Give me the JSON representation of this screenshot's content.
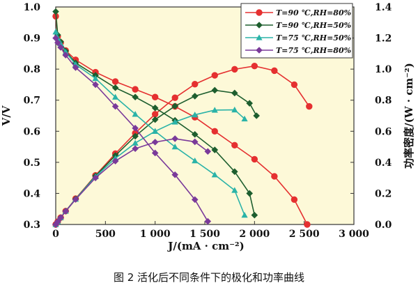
{
  "chart_data": {
    "type": "line",
    "caption": "图 2    活化后不同条件下的极化和功率曲线",
    "xlabel": "J/(mA · cm⁻²)",
    "ylabel_left": "V/V",
    "ylabel_right": "功率密度/(W · cm⁻²)",
    "xlim": [
      0,
      3000
    ],
    "ylim_left": [
      0.3,
      1.0
    ],
    "ylim_right": [
      0.0,
      1.4
    ],
    "x_ticks": [
      "0",
      "500",
      "1 000",
      "1 500",
      "2 000",
      "2 500",
      "3 000"
    ],
    "y_left_ticks": [
      "0.3",
      "0.4",
      "0.5",
      "0.6",
      "0.7",
      "0.8",
      "0.9",
      "1.0"
    ],
    "y_right_ticks": [
      "0.0",
      "0.2",
      "0.4",
      "0.6",
      "0.8",
      "1.0",
      "1.2",
      "1.4"
    ],
    "legend_position": "top-right",
    "series": [
      {
        "name": "T=90 ℃,RH=80%",
        "color": "#e53030",
        "marker": "circle",
        "voltage": [
          [
            0,
            0.97
          ],
          [
            20,
            0.905
          ],
          [
            50,
            0.885
          ],
          [
            100,
            0.86
          ],
          [
            200,
            0.83
          ],
          [
            400,
            0.79
          ],
          [
            600,
            0.76
          ],
          [
            800,
            0.735
          ],
          [
            1000,
            0.71
          ],
          [
            1200,
            0.68
          ],
          [
            1400,
            0.645
          ],
          [
            1600,
            0.6
          ],
          [
            1800,
            0.555
          ],
          [
            2000,
            0.51
          ],
          [
            2200,
            0.455
          ],
          [
            2400,
            0.38
          ],
          [
            2530,
            0.3
          ]
        ],
        "power": [
          [
            0,
            0.0
          ],
          [
            20,
            0.018
          ],
          [
            50,
            0.044
          ],
          [
            100,
            0.086
          ],
          [
            200,
            0.166
          ],
          [
            400,
            0.316
          ],
          [
            600,
            0.456
          ],
          [
            800,
            0.588
          ],
          [
            1000,
            0.71
          ],
          [
            1200,
            0.816
          ],
          [
            1400,
            0.903
          ],
          [
            1600,
            0.96
          ],
          [
            1800,
            0.999
          ],
          [
            2000,
            1.02
          ],
          [
            2200,
            0.99
          ],
          [
            2400,
            0.9
          ],
          [
            2550,
            0.76
          ]
        ]
      },
      {
        "name": "T=90 ℃,RH=50%",
        "color": "#1d5e2e",
        "marker": "diamond",
        "voltage": [
          [
            0,
            0.985
          ],
          [
            20,
            0.91
          ],
          [
            50,
            0.888
          ],
          [
            100,
            0.858
          ],
          [
            200,
            0.82
          ],
          [
            400,
            0.78
          ],
          [
            600,
            0.74
          ],
          [
            800,
            0.71
          ],
          [
            1000,
            0.675
          ],
          [
            1200,
            0.635
          ],
          [
            1400,
            0.59
          ],
          [
            1600,
            0.54
          ],
          [
            1800,
            0.47
          ],
          [
            1950,
            0.4
          ],
          [
            2000,
            0.33
          ]
        ],
        "power": [
          [
            0,
            0.0
          ],
          [
            20,
            0.018
          ],
          [
            50,
            0.044
          ],
          [
            100,
            0.086
          ],
          [
            200,
            0.164
          ],
          [
            400,
            0.312
          ],
          [
            600,
            0.444
          ],
          [
            800,
            0.568
          ],
          [
            1000,
            0.675
          ],
          [
            1200,
            0.762
          ],
          [
            1400,
            0.826
          ],
          [
            1600,
            0.864
          ],
          [
            1800,
            0.846
          ],
          [
            1950,
            0.78
          ],
          [
            2020,
            0.7
          ]
        ]
      },
      {
        "name": "T=75 ℃,RH=50%",
        "color": "#2ab3a8",
        "marker": "triangle",
        "voltage": [
          [
            0,
            0.92
          ],
          [
            20,
            0.9
          ],
          [
            50,
            0.882
          ],
          [
            100,
            0.855
          ],
          [
            200,
            0.815
          ],
          [
            400,
            0.77
          ],
          [
            600,
            0.71
          ],
          [
            800,
            0.655
          ],
          [
            1000,
            0.6
          ],
          [
            1200,
            0.55
          ],
          [
            1400,
            0.505
          ],
          [
            1600,
            0.46
          ],
          [
            1800,
            0.41
          ],
          [
            1900,
            0.33
          ]
        ],
        "power": [
          [
            0,
            0.0
          ],
          [
            20,
            0.018
          ],
          [
            50,
            0.044
          ],
          [
            100,
            0.086
          ],
          [
            200,
            0.163
          ],
          [
            400,
            0.308
          ],
          [
            600,
            0.426
          ],
          [
            800,
            0.524
          ],
          [
            1000,
            0.6
          ],
          [
            1200,
            0.66
          ],
          [
            1400,
            0.706
          ],
          [
            1600,
            0.736
          ],
          [
            1800,
            0.738
          ],
          [
            1900,
            0.68
          ]
        ]
      },
      {
        "name": "T=75 ℃,RH=80%",
        "color": "#7a3a9a",
        "marker": "diamond",
        "voltage": [
          [
            0,
            0.9
          ],
          [
            20,
            0.885
          ],
          [
            50,
            0.87
          ],
          [
            100,
            0.845
          ],
          [
            200,
            0.805
          ],
          [
            400,
            0.75
          ],
          [
            600,
            0.68
          ],
          [
            800,
            0.61
          ],
          [
            1000,
            0.53
          ],
          [
            1200,
            0.46
          ],
          [
            1400,
            0.38
          ],
          [
            1530,
            0.31
          ]
        ],
        "power": [
          [
            0,
            0.0
          ],
          [
            20,
            0.018
          ],
          [
            50,
            0.044
          ],
          [
            100,
            0.085
          ],
          [
            200,
            0.161
          ],
          [
            400,
            0.3
          ],
          [
            600,
            0.408
          ],
          [
            800,
            0.488
          ],
          [
            1000,
            0.53
          ],
          [
            1200,
            0.552
          ],
          [
            1400,
            0.532
          ],
          [
            1530,
            0.47
          ]
        ]
      }
    ]
  }
}
